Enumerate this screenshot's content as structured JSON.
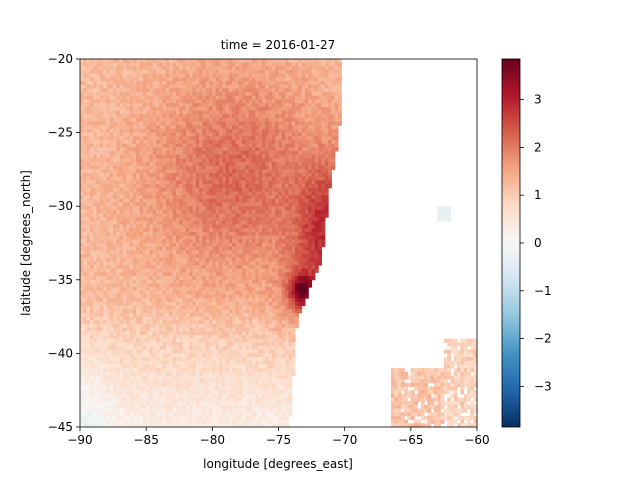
{
  "chart_data": {
    "type": "heatmap",
    "title": "time = 2016-01-27",
    "xlabel": "longitude [degrees_east]",
    "ylabel": "latitude [degrees_north]",
    "xlim": [
      -90,
      -60
    ],
    "ylim": [
      -45,
      -20
    ],
    "x_ticks": [
      -90,
      -85,
      -80,
      -75,
      -70,
      -65,
      -60
    ],
    "y_ticks": [
      -45,
      -40,
      -35,
      -30,
      -25,
      -20
    ],
    "colorbar": {
      "colormap": "RdBu_r",
      "range": [
        -3.85,
        3.85
      ],
      "ticks": [
        -3,
        -2,
        -1,
        0,
        1,
        2,
        3
      ]
    },
    "field": {
      "description_of_values": "anomaly values by longitude/latitude; land and masked areas blank",
      "coastline_lon_by_lat": [
        [
          -20,
          -70.3
        ],
        [
          -22,
          -70.2
        ],
        [
          -24,
          -70.3
        ],
        [
          -26,
          -70.6
        ],
        [
          -28,
          -71.0
        ],
        [
          -30,
          -71.3
        ],
        [
          -32,
          -71.5
        ],
        [
          -34,
          -71.9
        ],
        [
          -36,
          -72.8
        ],
        [
          -37,
          -73.3
        ],
        [
          -38,
          -73.6
        ],
        [
          -40,
          -73.8
        ],
        [
          -42,
          -73.9
        ],
        [
          -44,
          -74.1
        ],
        [
          -45,
          -74.2
        ]
      ],
      "peak": {
        "lon": -73.2,
        "lat": -35.8,
        "value": 3.8
      },
      "inland_patches": [
        {
          "lon": [
            -66.5,
            -62.5
          ],
          "lat": [
            -45,
            -41
          ],
          "value": 1.1
        },
        {
          "lon": [
            -62.5,
            -60
          ],
          "lat": [
            -45,
            -39
          ],
          "value": 0.9
        }
      ],
      "small_negative_spot": {
        "lon": -62.5,
        "lat": -30.5,
        "value": -0.3
      }
    }
  }
}
